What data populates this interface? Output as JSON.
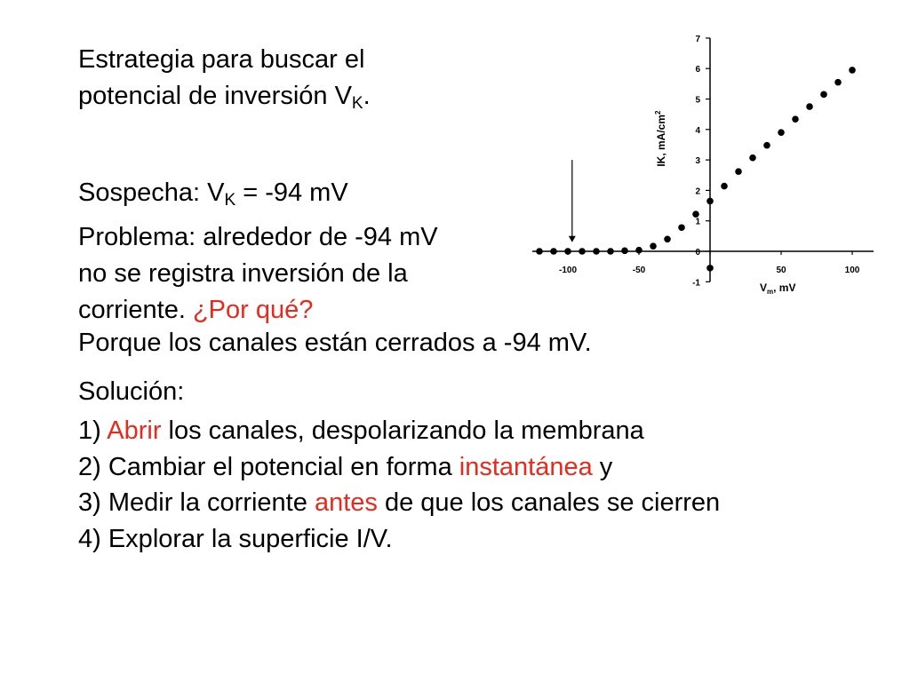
{
  "title": {
    "line1": "Estrategia para buscar el",
    "line2_pre": "potencial de inversión V",
    "line2_sub": "K",
    "line2_post": "."
  },
  "suspicion": {
    "pre": "Sospecha: V",
    "sub": "K",
    "post": " = -94 mV"
  },
  "problem": {
    "line1": "Problema: alrededor de  -94 mV",
    "line2": "no se registra inversión de la",
    "line3_pre": "corriente. ",
    "line3_red": "¿Por qué?"
  },
  "answer": "Porque los canales están cerrados a -94 mV.",
  "solution": {
    "heading": "Solución:",
    "s1_pre": "1) ",
    "s1_red": "Abrir",
    "s1_post": " los canales, despolarizando la membrana",
    "s2_pre": "2) Cambiar el potencial en forma ",
    "s2_red": "instantánea",
    "s2_post": " y",
    "s3_pre": "3) Medir la corriente ",
    "s3_red": "antes",
    "s3_post": " de que los canales se cierren",
    "s4": "4) Explorar la superficie I/V."
  },
  "colors": {
    "highlight": "#e8291c",
    "text": "#000000"
  },
  "chart_data": {
    "type": "scatter",
    "xlabel_main": "V",
    "xlabel_sub": "m",
    "xlabel_post": ", mV",
    "ylabel_main": "IK, mA/cm",
    "ylabel_sup": "2",
    "xlim": [
      -125,
      115
    ],
    "ylim": [
      -1,
      7
    ],
    "xticks": [
      -100,
      -50,
      0,
      50,
      100
    ],
    "xtick_labels": [
      "-100",
      "-50",
      "",
      "50",
      "100"
    ],
    "yticks": [
      -1,
      0,
      1,
      2,
      3,
      4,
      5,
      6,
      7
    ],
    "x": [
      -120,
      -110,
      -100,
      -90,
      -80,
      -70,
      -60,
      -50,
      -40,
      -30,
      -20,
      -10,
      0,
      10,
      20,
      30,
      40,
      50,
      60,
      70,
      80,
      90,
      100,
      0
    ],
    "y": [
      0,
      0,
      0,
      0,
      0,
      0,
      0.02,
      0.04,
      0.17,
      0.4,
      0.78,
      1.22,
      1.65,
      2.14,
      2.62,
      3.07,
      3.48,
      3.9,
      4.34,
      4.75,
      5.15,
      5.55,
      5.95,
      -0.55
    ],
    "arrow": {
      "x": -97,
      "from_y": 3,
      "to_y": 0.3
    },
    "grid": false
  }
}
